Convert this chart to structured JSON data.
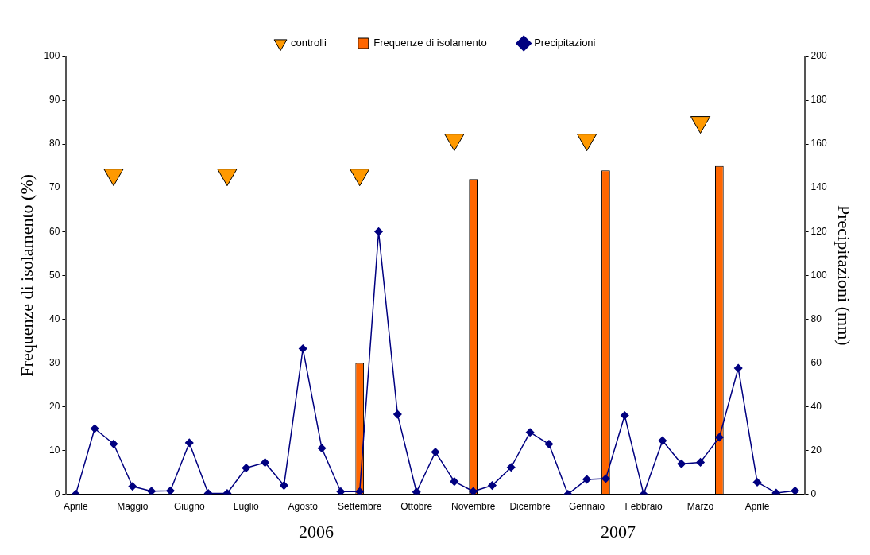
{
  "chart_data": {
    "type": "bar",
    "ylabel": "Frequenze di isolamento (%)",
    "y2label": "Precipitazioni (mm)",
    "categories": [
      "Aprile",
      null,
      null,
      "Maggio",
      null,
      null,
      "Giugno",
      null,
      null,
      "Luglio",
      null,
      null,
      "Agosto",
      null,
      null,
      "Settembre",
      null,
      null,
      "Ottobre",
      null,
      null,
      "Novembre",
      null,
      null,
      "Dicembre",
      null,
      null,
      "Gennaio",
      null,
      null,
      "Febbraio",
      null,
      null,
      "Marzo",
      null,
      null,
      "Aprile",
      null,
      null
    ],
    "series": [
      {
        "name": "controlli",
        "type": "scatter",
        "color": "#ff9900",
        "marker": "triangle",
        "values": [
          null,
          null,
          73,
          null,
          null,
          null,
          null,
          null,
          73,
          null,
          null,
          null,
          null,
          null,
          null,
          73,
          null,
          null,
          null,
          null,
          81,
          null,
          null,
          null,
          null,
          null,
          null,
          81,
          null,
          null,
          null,
          null,
          null,
          85,
          null,
          null,
          null,
          null,
          null
        ]
      },
      {
        "name": "Frequenze di isolamento",
        "color": "#ff6600",
        "values": [
          null,
          null,
          null,
          null,
          null,
          null,
          null,
          null,
          null,
          null,
          null,
          null,
          null,
          null,
          null,
          30,
          null,
          null,
          null,
          null,
          null,
          72,
          null,
          null,
          null,
          null,
          null,
          null,
          74,
          null,
          null,
          null,
          null,
          null,
          75,
          null,
          null,
          null,
          null
        ]
      },
      {
        "name": "Precipitazioni",
        "type": "line",
        "axis": "y2",
        "color": "#000080",
        "marker": "diamond",
        "values": [
          0,
          30,
          23,
          3.6,
          1.4,
          1.6,
          23.5,
          0.4,
          0.4,
          12,
          14.5,
          4,
          66.5,
          21,
          1.2,
          1.2,
          120,
          36.5,
          1,
          19.3,
          5.8,
          1.3,
          4,
          12.3,
          28.3,
          22.9,
          0,
          6.8,
          7.1,
          36,
          0,
          24.5,
          13.9,
          14.6,
          26,
          57.6,
          5.5,
          0.6,
          1.6
        ]
      }
    ],
    "ylim": [
      0,
      100
    ],
    "yticks": [
      0,
      10,
      20,
      30,
      40,
      50,
      60,
      70,
      80,
      90,
      100
    ],
    "y2lim": [
      0,
      200
    ],
    "y2ticks": [
      0,
      20,
      40,
      60,
      80,
      100,
      120,
      140,
      160,
      180,
      200
    ],
    "grid": false,
    "legend": "top",
    "annotations": [
      "2006",
      "2007"
    ]
  }
}
